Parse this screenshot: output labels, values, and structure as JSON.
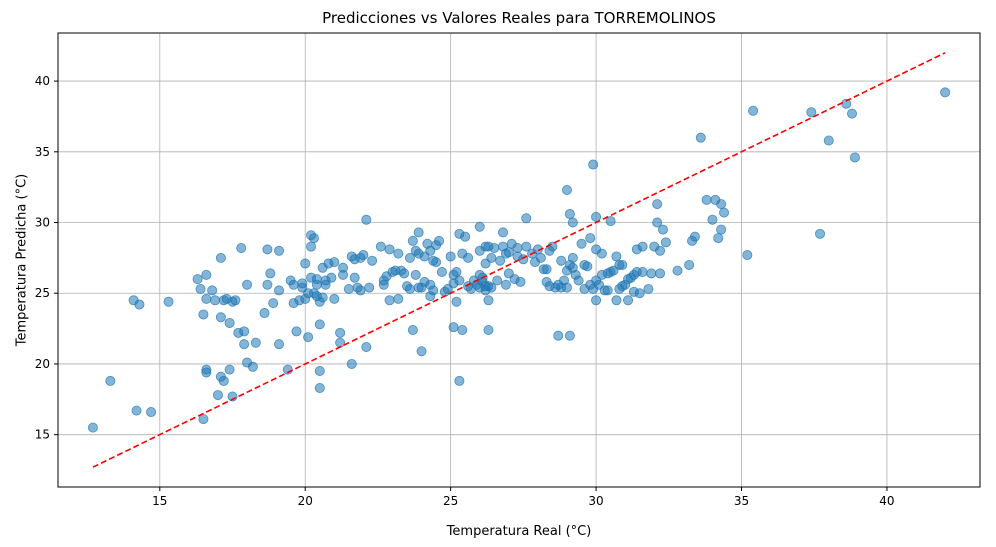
{
  "chart_data": {
    "type": "scatter",
    "title": "Predicciones vs Valores Reales para TORREMOLINOS",
    "xlabel": "Temperatura Real (°C)",
    "ylabel": "Temperatura Predicha (°C)",
    "xlim": [
      11.5,
      43.2
    ],
    "ylim": [
      11.3,
      43.4
    ],
    "xticks": [
      15,
      20,
      25,
      30,
      35,
      40
    ],
    "yticks": [
      15,
      20,
      25,
      30,
      35,
      40
    ],
    "grid": true,
    "colors": {
      "points": "#1f77b4",
      "reference_line": "#ff0000",
      "grid": "#b0b0b0"
    },
    "reference_line": {
      "style": "dashed",
      "x": [
        12.7,
        42.0
      ],
      "y": [
        12.7,
        42.0
      ]
    },
    "points": [
      [
        12.7,
        15.5
      ],
      [
        13.3,
        18.8
      ],
      [
        14.1,
        24.5
      ],
      [
        14.2,
        16.7
      ],
      [
        14.3,
        24.2
      ],
      [
        14.7,
        16.6
      ],
      [
        15.3,
        24.4
      ],
      [
        16.3,
        26.0
      ],
      [
        16.4,
        25.3
      ],
      [
        16.5,
        16.1
      ],
      [
        16.5,
        23.5
      ],
      [
        16.6,
        19.6
      ],
      [
        16.6,
        19.4
      ],
      [
        16.6,
        24.6
      ],
      [
        16.6,
        26.3
      ],
      [
        16.8,
        25.2
      ],
      [
        16.9,
        24.5
      ],
      [
        17.0,
        17.8
      ],
      [
        17.1,
        19.1
      ],
      [
        17.1,
        23.3
      ],
      [
        17.1,
        27.5
      ],
      [
        17.2,
        18.8
      ],
      [
        17.2,
        24.5
      ],
      [
        17.3,
        24.6
      ],
      [
        17.4,
        19.6
      ],
      [
        17.4,
        22.9
      ],
      [
        17.5,
        24.4
      ],
      [
        17.5,
        17.7
      ],
      [
        17.6,
        24.5
      ],
      [
        17.7,
        22.2
      ],
      [
        17.8,
        28.2
      ],
      [
        17.9,
        22.3
      ],
      [
        17.9,
        21.4
      ],
      [
        18.0,
        20.1
      ],
      [
        18.0,
        25.6
      ],
      [
        18.2,
        19.8
      ],
      [
        18.3,
        21.5
      ],
      [
        18.6,
        23.6
      ],
      [
        18.7,
        28.1
      ],
      [
        18.7,
        25.6
      ],
      [
        18.8,
        26.4
      ],
      [
        18.9,
        24.3
      ],
      [
        19.1,
        28.0
      ],
      [
        19.1,
        25.2
      ],
      [
        19.1,
        21.4
      ],
      [
        19.4,
        19.6
      ],
      [
        19.5,
        25.9
      ],
      [
        19.6,
        24.3
      ],
      [
        19.6,
        25.6
      ],
      [
        19.7,
        22.3
      ],
      [
        19.8,
        24.5
      ],
      [
        19.9,
        25.4
      ],
      [
        19.9,
        25.7
      ],
      [
        20.0,
        27.1
      ],
      [
        20.0,
        24.6
      ],
      [
        20.1,
        21.9
      ],
      [
        20.1,
        25.0
      ],
      [
        20.2,
        29.1
      ],
      [
        20.2,
        26.1
      ],
      [
        20.2,
        28.3
      ],
      [
        20.3,
        28.9
      ],
      [
        20.3,
        25.0
      ],
      [
        20.4,
        25.6
      ],
      [
        20.4,
        24.8
      ],
      [
        20.4,
        26.0
      ],
      [
        20.5,
        24.4
      ],
      [
        20.5,
        19.5
      ],
      [
        20.5,
        18.3
      ],
      [
        20.5,
        22.8
      ],
      [
        20.6,
        24.7
      ],
      [
        20.6,
        26.8
      ],
      [
        20.7,
        25.6
      ],
      [
        20.7,
        25.9
      ],
      [
        20.8,
        27.1
      ],
      [
        20.9,
        26.1
      ],
      [
        21.0,
        24.6
      ],
      [
        21.0,
        27.2
      ],
      [
        21.2,
        22.2
      ],
      [
        21.2,
        21.5
      ],
      [
        21.3,
        26.3
      ],
      [
        21.3,
        26.8
      ],
      [
        21.5,
        25.3
      ],
      [
        21.6,
        27.6
      ],
      [
        21.6,
        20.0
      ],
      [
        21.7,
        27.4
      ],
      [
        21.7,
        26.1
      ],
      [
        21.8,
        25.4
      ],
      [
        21.9,
        27.5
      ],
      [
        21.9,
        25.2
      ],
      [
        22.0,
        27.7
      ],
      [
        22.1,
        30.2
      ],
      [
        22.1,
        21.2
      ],
      [
        22.2,
        25.4
      ],
      [
        22.3,
        27.3
      ],
      [
        22.6,
        28.3
      ],
      [
        22.7,
        25.9
      ],
      [
        22.7,
        25.6
      ],
      [
        22.8,
        26.2
      ],
      [
        22.9,
        28.1
      ],
      [
        22.9,
        24.5
      ],
      [
        23.0,
        26.5
      ],
      [
        23.1,
        26.6
      ],
      [
        23.2,
        27.8
      ],
      [
        23.2,
        24.6
      ],
      [
        23.3,
        26.6
      ],
      [
        23.4,
        26.4
      ],
      [
        23.5,
        25.5
      ],
      [
        23.6,
        25.3
      ],
      [
        23.6,
        27.5
      ],
      [
        23.7,
        28.7
      ],
      [
        23.7,
        22.4
      ],
      [
        23.8,
        28.0
      ],
      [
        23.8,
        26.3
      ],
      [
        23.9,
        29.3
      ],
      [
        23.9,
        27.8
      ],
      [
        23.9,
        25.4
      ],
      [
        24.0,
        20.9
      ],
      [
        24.0,
        25.4
      ],
      [
        24.1,
        25.8
      ],
      [
        24.1,
        27.6
      ],
      [
        24.2,
        28.5
      ],
      [
        24.3,
        25.6
      ],
      [
        24.3,
        24.8
      ],
      [
        24.3,
        28.0
      ],
      [
        24.4,
        25.2
      ],
      [
        24.4,
        27.3
      ],
      [
        24.5,
        28.4
      ],
      [
        24.5,
        27.2
      ],
      [
        24.6,
        28.7
      ],
      [
        24.7,
        26.5
      ],
      [
        24.8,
        25.1
      ],
      [
        24.9,
        25.3
      ],
      [
        25.0,
        27.6
      ],
      [
        25.1,
        22.6
      ],
      [
        25.1,
        26.3
      ],
      [
        25.1,
        25.7
      ],
      [
        25.2,
        26.5
      ],
      [
        25.2,
        24.4
      ],
      [
        25.3,
        29.2
      ],
      [
        25.3,
        25.9
      ],
      [
        25.3,
        18.8
      ],
      [
        25.4,
        27.8
      ],
      [
        25.4,
        22.4
      ],
      [
        25.5,
        29.0
      ],
      [
        25.6,
        27.5
      ],
      [
        25.6,
        25.5
      ],
      [
        25.7,
        25.3
      ],
      [
        25.8,
        25.9
      ],
      [
        25.9,
        25.6
      ],
      [
        26.0,
        29.7
      ],
      [
        26.0,
        28.0
      ],
      [
        26.0,
        26.3
      ],
      [
        26.0,
        25.4
      ],
      [
        26.1,
        26.1
      ],
      [
        26.1,
        25.8
      ],
      [
        26.2,
        27.1
      ],
      [
        26.2,
        28.3
      ],
      [
        26.2,
        25.5
      ],
      [
        26.2,
        25.2
      ],
      [
        26.3,
        28.3
      ],
      [
        26.3,
        24.5
      ],
      [
        26.3,
        22.4
      ],
      [
        26.3,
        25.5
      ],
      [
        26.4,
        25.4
      ],
      [
        26.4,
        27.5
      ],
      [
        26.5,
        28.2
      ],
      [
        26.6,
        25.9
      ],
      [
        26.7,
        27.3
      ],
      [
        26.8,
        28.3
      ],
      [
        26.8,
        29.3
      ],
      [
        26.9,
        27.8
      ],
      [
        26.9,
        25.6
      ],
      [
        27.0,
        27.9
      ],
      [
        27.0,
        26.4
      ],
      [
        27.1,
        28.5
      ],
      [
        27.2,
        26.0
      ],
      [
        27.3,
        27.6
      ],
      [
        27.3,
        28.2
      ],
      [
        27.4,
        25.8
      ],
      [
        27.5,
        27.4
      ],
      [
        27.6,
        28.3
      ],
      [
        27.6,
        30.3
      ],
      [
        27.8,
        27.8
      ],
      [
        27.9,
        27.2
      ],
      [
        28.0,
        28.1
      ],
      [
        28.1,
        27.5
      ],
      [
        28.2,
        26.7
      ],
      [
        28.3,
        26.7
      ],
      [
        28.3,
        25.8
      ],
      [
        28.4,
        28.0
      ],
      [
        28.4,
        25.5
      ],
      [
        28.5,
        28.3
      ],
      [
        28.6,
        25.4
      ],
      [
        28.7,
        25.6
      ],
      [
        28.7,
        22.0
      ],
      [
        28.8,
        27.3
      ],
      [
        28.8,
        25.4
      ],
      [
        28.9,
        25.9
      ],
      [
        29.0,
        32.3
      ],
      [
        29.0,
        26.6
      ],
      [
        29.0,
        25.4
      ],
      [
        29.1,
        30.6
      ],
      [
        29.1,
        27.0
      ],
      [
        29.1,
        22.0
      ],
      [
        29.2,
        30.0
      ],
      [
        29.2,
        27.5
      ],
      [
        29.2,
        26.8
      ],
      [
        29.3,
        26.3
      ],
      [
        29.4,
        25.9
      ],
      [
        29.5,
        28.5
      ],
      [
        29.6,
        25.3
      ],
      [
        29.6,
        27.0
      ],
      [
        29.7,
        26.9
      ],
      [
        29.8,
        25.6
      ],
      [
        29.8,
        28.9
      ],
      [
        29.9,
        34.1
      ],
      [
        29.9,
        25.3
      ],
      [
        30.0,
        30.4
      ],
      [
        30.0,
        25.9
      ],
      [
        30.0,
        24.5
      ],
      [
        30.0,
        28.1
      ],
      [
        30.1,
        25.6
      ],
      [
        30.2,
        26.3
      ],
      [
        30.2,
        27.8
      ],
      [
        30.3,
        25.2
      ],
      [
        30.4,
        26.4
      ],
      [
        30.4,
        25.2
      ],
      [
        30.5,
        30.1
      ],
      [
        30.5,
        26.5
      ],
      [
        30.6,
        26.6
      ],
      [
        30.7,
        27.6
      ],
      [
        30.7,
        24.5
      ],
      [
        30.8,
        27.0
      ],
      [
        30.8,
        25.3
      ],
      [
        30.9,
        25.5
      ],
      [
        30.9,
        27.0
      ],
      [
        31.0,
        25.6
      ],
      [
        31.1,
        24.5
      ],
      [
        31.1,
        26.0
      ],
      [
        31.2,
        26.1
      ],
      [
        31.3,
        25.1
      ],
      [
        31.3,
        26.3
      ],
      [
        31.4,
        28.1
      ],
      [
        31.4,
        26.5
      ],
      [
        31.5,
        25.0
      ],
      [
        31.6,
        28.3
      ],
      [
        31.6,
        26.5
      ],
      [
        31.8,
        25.3
      ],
      [
        31.9,
        26.4
      ],
      [
        32.0,
        28.3
      ],
      [
        32.1,
        30.0
      ],
      [
        32.1,
        31.3
      ],
      [
        32.2,
        26.4
      ],
      [
        32.2,
        28.0
      ],
      [
        32.3,
        29.5
      ],
      [
        32.4,
        28.6
      ],
      [
        32.8,
        26.6
      ],
      [
        33.2,
        27.0
      ],
      [
        33.3,
        28.7
      ],
      [
        33.4,
        29.0
      ],
      [
        33.6,
        36.0
      ],
      [
        33.8,
        31.6
      ],
      [
        34.0,
        30.2
      ],
      [
        34.1,
        31.6
      ],
      [
        34.2,
        28.9
      ],
      [
        34.3,
        31.3
      ],
      [
        34.3,
        29.5
      ],
      [
        34.4,
        30.7
      ],
      [
        35.2,
        27.7
      ],
      [
        35.4,
        37.9
      ],
      [
        37.4,
        37.8
      ],
      [
        37.7,
        29.2
      ],
      [
        38.0,
        35.8
      ],
      [
        38.6,
        38.4
      ],
      [
        38.8,
        37.7
      ],
      [
        38.9,
        34.6
      ],
      [
        42.0,
        39.2
      ]
    ]
  }
}
